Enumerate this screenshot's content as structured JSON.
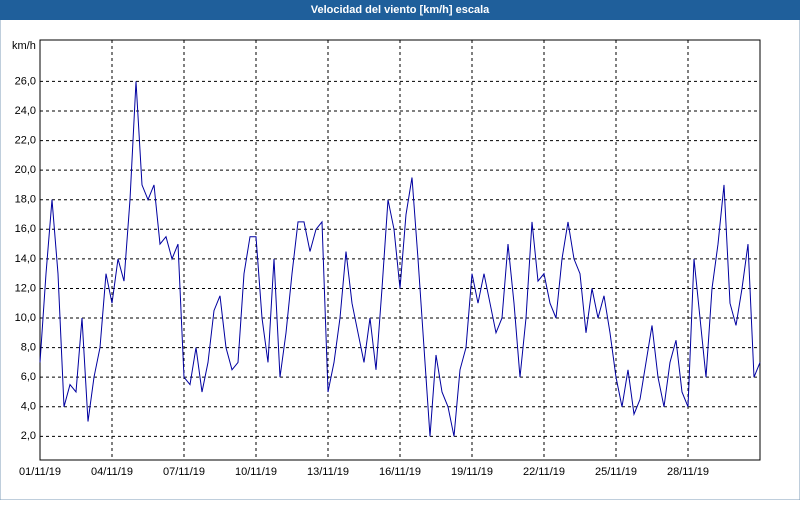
{
  "chart_data": {
    "type": "line",
    "title": "Velocidad del viento [km/h] escala",
    "y_label": "km/h",
    "xlim": [
      0,
      30
    ],
    "xticks": [
      {
        "value": 0,
        "label": "01/11/19"
      },
      {
        "value": 3,
        "label": "04/11/19"
      },
      {
        "value": 6,
        "label": "07/11/19"
      },
      {
        "value": 9,
        "label": "10/11/19"
      },
      {
        "value": 12,
        "label": "13/11/19"
      },
      {
        "value": 15,
        "label": "16/11/19"
      },
      {
        "value": 18,
        "label": "19/11/19"
      },
      {
        "value": 21,
        "label": "22/11/19"
      },
      {
        "value": 24,
        "label": "25/11/19"
      },
      {
        "value": 27,
        "label": "28/11/19"
      }
    ],
    "ylim": [
      0.4,
      28.8
    ],
    "yticks": [
      {
        "value": 2,
        "label": "2,0"
      },
      {
        "value": 4,
        "label": "4,0"
      },
      {
        "value": 6,
        "label": "6,0"
      },
      {
        "value": 8,
        "label": "8,0"
      },
      {
        "value": 10,
        "label": "10,0"
      },
      {
        "value": 12,
        "label": "12,0"
      },
      {
        "value": 14,
        "label": "14,0"
      },
      {
        "value": 16,
        "label": "16,0"
      },
      {
        "value": 18,
        "label": "18,0"
      },
      {
        "value": 20,
        "label": "20,0"
      },
      {
        "value": 22,
        "label": "22,0"
      },
      {
        "value": 24,
        "label": "24,0"
      },
      {
        "value": 26,
        "label": "26,0"
      }
    ],
    "grid": true,
    "x": [
      0,
      0.25,
      0.5,
      0.75,
      1,
      1.25,
      1.5,
      1.75,
      2,
      2.25,
      2.5,
      2.75,
      3,
      3.25,
      3.5,
      3.75,
      4,
      4.25,
      4.5,
      4.75,
      5,
      5.25,
      5.5,
      5.75,
      6,
      6.25,
      6.5,
      6.75,
      7,
      7.25,
      7.5,
      7.75,
      8,
      8.25,
      8.5,
      8.75,
      9,
      9.25,
      9.5,
      9.75,
      10,
      10.25,
      10.5,
      10.75,
      11,
      11.25,
      11.5,
      11.75,
      12,
      12.25,
      12.5,
      12.75,
      13,
      13.25,
      13.5,
      13.75,
      14,
      14.25,
      14.5,
      14.75,
      15,
      15.25,
      15.5,
      15.75,
      16,
      16.25,
      16.5,
      16.75,
      17,
      17.25,
      17.5,
      17.75,
      18,
      18.25,
      18.5,
      18.75,
      19,
      19.25,
      19.5,
      19.75,
      20,
      20.25,
      20.5,
      20.75,
      21,
      21.25,
      21.5,
      21.75,
      22,
      22.25,
      22.5,
      22.75,
      23,
      23.25,
      23.5,
      23.75,
      24,
      24.25,
      24.5,
      24.75,
      25,
      25.25,
      25.5,
      25.75,
      26,
      26.25,
      26.5,
      26.75,
      27,
      27.25,
      27.5,
      27.75,
      28,
      28.25,
      28.5,
      28.75,
      29,
      29.25,
      29.5,
      29.75,
      30
    ],
    "series": [
      {
        "name": "Velocidad del viento",
        "color": "#0000a0",
        "values": [
          7,
          13,
          18,
          13,
          4,
          5.5,
          5,
          10,
          3,
          6,
          8,
          13,
          11,
          14,
          12.5,
          18,
          26,
          19,
          18,
          19,
          15,
          15.5,
          14,
          15,
          6,
          5.5,
          8,
          5,
          7,
          10.5,
          11.5,
          8,
          6.5,
          7,
          13,
          15.5,
          15.5,
          10,
          7,
          14,
          6,
          9,
          13,
          16.5,
          16.5,
          14.5,
          16,
          16.5,
          5,
          7,
          10,
          14.5,
          11,
          9,
          7,
          10,
          6.5,
          12,
          18,
          16,
          12,
          17,
          19.5,
          14,
          8,
          2,
          7.5,
          5,
          4,
          2,
          6.5,
          8,
          13,
          11,
          13,
          11,
          9,
          10,
          15,
          11,
          6,
          10,
          16.5,
          12.5,
          13,
          11,
          10,
          14,
          16.5,
          14,
          13,
          9,
          12,
          10,
          11.5,
          9,
          6,
          4,
          6.5,
          3.5,
          4.5,
          7,
          9.5,
          6,
          4,
          7,
          8.5,
          5,
          4,
          14,
          10,
          6,
          12,
          15,
          19,
          11,
          9.5,
          12,
          15,
          6,
          7
        ]
      }
    ]
  }
}
